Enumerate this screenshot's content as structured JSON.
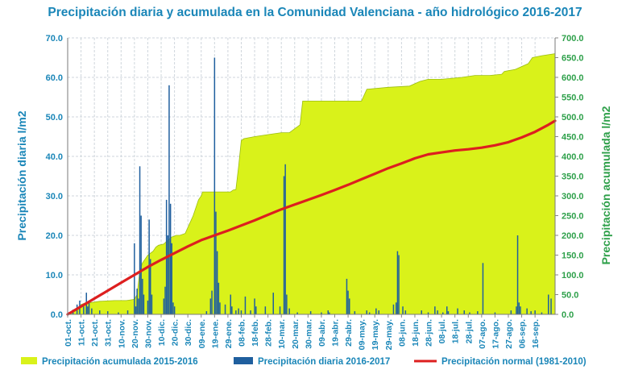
{
  "chart_data": {
    "type": "bar+area+line",
    "title": "Precipitación diaria y acumulada en la Comunidad Valenciana - año hidrológico 2016-2017",
    "ylabel_left": "Precipitación diaria l/m2",
    "ylabel_right": "Precipitación acumulada l/m2",
    "ylim_left": [
      0,
      70
    ],
    "ylim_right": [
      0,
      700
    ],
    "yticks_left": [
      "0.0",
      "10.0",
      "20.0",
      "30.0",
      "40.0",
      "50.0",
      "60.0",
      "70.0"
    ],
    "yticks_right": [
      "0.0",
      "50.0",
      "100.0",
      "150.0",
      "200.0",
      "250.0",
      "300.0",
      "350.0",
      "400.0",
      "450.0",
      "500.0",
      "550.0",
      "600.0",
      "650.0",
      "700.0"
    ],
    "x_days": 365,
    "x_tick_labels": [
      "01-oct.",
      "11-oct.",
      "21-oct.",
      "31-oct.",
      "10-nov.",
      "20-nov.",
      "30-nov.",
      "10-dic.",
      "20-dic.",
      "30-dic.",
      "09-ene.",
      "19-ene.",
      "29-ene.",
      "08-feb.",
      "18-feb.",
      "28-feb.",
      "10-mar.",
      "20-mar.",
      "30-mar.",
      "09-abr.",
      "19-abr.",
      "29-abr.",
      "09-may.",
      "19-may.",
      "29-may.",
      "08-jun.",
      "18-jun.",
      "28-jun.",
      "08-jul.",
      "18-jul.",
      "28-jul.",
      "07-ago.",
      "17-ago.",
      "27-ago.",
      "06-sep.",
      "16-sep."
    ],
    "grid": true,
    "legend_position": "bottom",
    "colors": {
      "accumulated": "#d9f21a",
      "daily": "#1f5f9e",
      "normal": "#dd1f1f",
      "left_axis": "#1a86b8",
      "right_axis": "#2ea04a"
    },
    "series": [
      {
        "name": "Precipitación acumulada 2015-2016",
        "kind": "area",
        "axis": "right",
        "points": [
          [
            0,
            0
          ],
          [
            2,
            2
          ],
          [
            6,
            10
          ],
          [
            10,
            25
          ],
          [
            14,
            30
          ],
          [
            18,
            30
          ],
          [
            24,
            33
          ],
          [
            35,
            35
          ],
          [
            44,
            35
          ],
          [
            50,
            38
          ],
          [
            52,
            50
          ],
          [
            54,
            110
          ],
          [
            56,
            130
          ],
          [
            60,
            150
          ],
          [
            64,
            160
          ],
          [
            66,
            170
          ],
          [
            68,
            175
          ],
          [
            72,
            178
          ],
          [
            74,
            185
          ],
          [
            76,
            190
          ],
          [
            78,
            196
          ],
          [
            80,
            198
          ],
          [
            81,
            200
          ],
          [
            84,
            200
          ],
          [
            88,
            205
          ],
          [
            90,
            220
          ],
          [
            92,
            235
          ],
          [
            94,
            250
          ],
          [
            96,
            270
          ],
          [
            98,
            290
          ],
          [
            100,
            300
          ],
          [
            101,
            310
          ],
          [
            112,
            310
          ],
          [
            122,
            310
          ],
          [
            124,
            315
          ],
          [
            126,
            316
          ],
          [
            128,
            375
          ],
          [
            130,
            440
          ],
          [
            132,
            445
          ],
          [
            140,
            450
          ],
          [
            150,
            455
          ],
          [
            160,
            460
          ],
          [
            166,
            460
          ],
          [
            168,
            465
          ],
          [
            170,
            470
          ],
          [
            172,
            475
          ],
          [
            174,
            480
          ],
          [
            176,
            540
          ],
          [
            190,
            540
          ],
          [
            200,
            540
          ],
          [
            220,
            540
          ],
          [
            224,
            570
          ],
          [
            240,
            575
          ],
          [
            256,
            578
          ],
          [
            264,
            590
          ],
          [
            270,
            595
          ],
          [
            280,
            595
          ],
          [
            295,
            600
          ],
          [
            305,
            605
          ],
          [
            316,
            605
          ],
          [
            325,
            608
          ],
          [
            327,
            615
          ],
          [
            335,
            620
          ],
          [
            345,
            635
          ],
          [
            348,
            650
          ],
          [
            355,
            655
          ],
          [
            365,
            660
          ]
        ]
      },
      {
        "name": "Precipitación diaria 2016-2017",
        "kind": "bar",
        "axis": "left",
        "bars": [
          [
            4,
            1.2
          ],
          [
            7,
            2.5
          ],
          [
            9,
            3.5
          ],
          [
            12,
            2.0
          ],
          [
            14,
            5.5
          ],
          [
            15,
            2.0
          ],
          [
            16,
            3.0
          ],
          [
            18,
            1.5
          ],
          [
            24,
            1.0
          ],
          [
            30,
            0.8
          ],
          [
            38,
            0.5
          ],
          [
            45,
            1.0
          ],
          [
            50,
            18
          ],
          [
            51,
            2
          ],
          [
            52,
            6.5
          ],
          [
            53,
            4
          ],
          [
            54,
            37.5
          ],
          [
            55,
            25
          ],
          [
            56,
            9
          ],
          [
            57,
            5
          ],
          [
            60,
            3.5
          ],
          [
            61,
            24
          ],
          [
            62,
            14
          ],
          [
            63,
            5
          ],
          [
            72,
            4
          ],
          [
            73,
            7
          ],
          [
            74,
            29
          ],
          [
            75,
            20
          ],
          [
            76,
            58
          ],
          [
            77,
            28
          ],
          [
            78,
            18
          ],
          [
            79,
            3
          ],
          [
            80,
            2
          ],
          [
            104,
            0.8
          ],
          [
            107,
            4
          ],
          [
            108,
            6
          ],
          [
            110,
            65
          ],
          [
            111,
            26
          ],
          [
            112,
            16
          ],
          [
            113,
            8
          ],
          [
            114,
            3
          ],
          [
            118,
            2.5
          ],
          [
            122,
            5
          ],
          [
            123,
            2
          ],
          [
            126,
            1
          ],
          [
            128,
            1.5
          ],
          [
            130,
            1.0
          ],
          [
            133,
            4.5
          ],
          [
            137,
            1.0
          ],
          [
            140,
            4
          ],
          [
            141,
            2
          ],
          [
            148,
            2
          ],
          [
            154,
            5.5
          ],
          [
            159,
            2
          ],
          [
            162,
            35
          ],
          [
            163,
            38
          ],
          [
            164,
            5
          ],
          [
            166,
            1.5
          ],
          [
            172,
            0.5
          ],
          [
            182,
            0.8
          ],
          [
            190,
            0.5
          ],
          [
            195,
            1
          ],
          [
            196,
            0.5
          ],
          [
            209,
            9
          ],
          [
            210,
            6
          ],
          [
            211,
            4
          ],
          [
            215,
            0.8
          ],
          [
            224,
            1.0
          ],
          [
            226,
            0.5
          ],
          [
            231,
            1.5
          ],
          [
            233,
            1.0
          ],
          [
            244,
            2.5
          ],
          [
            246,
            3
          ],
          [
            247,
            16
          ],
          [
            248,
            15
          ],
          [
            251,
            2
          ],
          [
            253,
            1
          ],
          [
            265,
            1
          ],
          [
            270,
            0.5
          ],
          [
            275,
            2
          ],
          [
            277,
            1
          ],
          [
            281,
            0.5
          ],
          [
            284,
            2
          ],
          [
            285,
            0.8
          ],
          [
            292,
            1.5
          ],
          [
            297,
            1
          ],
          [
            301,
            0.5
          ],
          [
            307,
            0.8
          ],
          [
            311,
            13
          ],
          [
            320,
            0.5
          ],
          [
            332,
            1
          ],
          [
            336,
            2
          ],
          [
            337,
            20
          ],
          [
            338,
            3
          ],
          [
            339,
            2
          ],
          [
            344,
            1.5
          ],
          [
            347,
            0.8
          ],
          [
            350,
            1
          ],
          [
            355,
            0.5
          ],
          [
            360,
            5
          ],
          [
            362,
            4
          ]
        ]
      },
      {
        "name": "Precipitación normal (1981-2010)",
        "kind": "line",
        "axis": "right",
        "points": [
          [
            0,
            0
          ],
          [
            10,
            20
          ],
          [
            20,
            40
          ],
          [
            30,
            60
          ],
          [
            40,
            80
          ],
          [
            50,
            100
          ],
          [
            60,
            120
          ],
          [
            70,
            138
          ],
          [
            80,
            155
          ],
          [
            90,
            172
          ],
          [
            100,
            188
          ],
          [
            110,
            200
          ],
          [
            120,
            212
          ],
          [
            130,
            225
          ],
          [
            140,
            238
          ],
          [
            150,
            252
          ],
          [
            160,
            266
          ],
          [
            170,
            278
          ],
          [
            180,
            290
          ],
          [
            190,
            302
          ],
          [
            200,
            315
          ],
          [
            210,
            328
          ],
          [
            220,
            342
          ],
          [
            230,
            356
          ],
          [
            240,
            370
          ],
          [
            250,
            382
          ],
          [
            260,
            395
          ],
          [
            270,
            405
          ],
          [
            280,
            410
          ],
          [
            290,
            415
          ],
          [
            300,
            418
          ],
          [
            310,
            422
          ],
          [
            320,
            428
          ],
          [
            330,
            436
          ],
          [
            340,
            448
          ],
          [
            350,
            462
          ],
          [
            360,
            480
          ],
          [
            365,
            490
          ]
        ]
      }
    ]
  },
  "legend": [
    {
      "label": "Precipitación acumulada 2015-2016",
      "swatch": "area"
    },
    {
      "label": "Precipitación diaria 2016-2017",
      "swatch": "bar"
    },
    {
      "label": "Precipitación normal (1981-2010)",
      "swatch": "line"
    }
  ]
}
